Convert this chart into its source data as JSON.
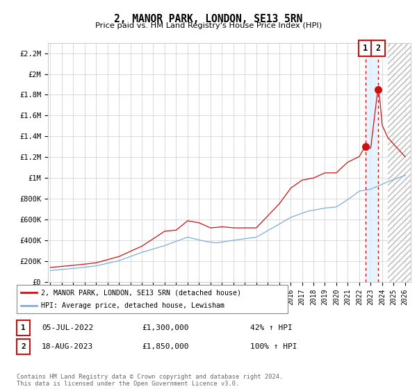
{
  "title": "2, MANOR PARK, LONDON, SE13 5RN",
  "subtitle": "Price paid vs. HM Land Registry's House Price Index (HPI)",
  "ylabel_ticks": [
    "£0",
    "£200K",
    "£400K",
    "£600K",
    "£800K",
    "£1M",
    "£1.2M",
    "£1.4M",
    "£1.6M",
    "£1.8M",
    "£2M",
    "£2.2M"
  ],
  "ytick_values": [
    0,
    200000,
    400000,
    600000,
    800000,
    1000000,
    1200000,
    1400000,
    1600000,
    1800000,
    2000000,
    2200000
  ],
  "ylim": [
    0,
    2300000
  ],
  "xlim_start": 1994.8,
  "xlim_end": 2026.5,
  "hatch_start": 2024.5,
  "xtick_years": [
    1995,
    1996,
    1997,
    1998,
    1999,
    2000,
    2001,
    2002,
    2003,
    2004,
    2005,
    2006,
    2007,
    2008,
    2009,
    2010,
    2011,
    2012,
    2013,
    2014,
    2015,
    2016,
    2017,
    2018,
    2019,
    2020,
    2021,
    2022,
    2023,
    2024,
    2025,
    2026
  ],
  "hpi_color": "#7aade0",
  "price_color": "#cc1111",
  "vline_color": "#cc1111",
  "highlight_color": "#ddeeff",
  "sale1_x": 2022.54,
  "sale1_y": 1300000,
  "sale2_x": 2023.63,
  "sale2_y": 1850000,
  "annotation1": {
    "label": "1",
    "date": "05-JUL-2022",
    "price": "£1,300,000",
    "pct": "42% ↑ HPI"
  },
  "annotation2": {
    "label": "2",
    "date": "18-AUG-2023",
    "price": "£1,850,000",
    "pct": "100% ↑ HPI"
  },
  "footer": "Contains HM Land Registry data © Crown copyright and database right 2024.\nThis data is licensed under the Open Government Licence v3.0.",
  "legend_line1": "2, MANOR PARK, LONDON, SE13 5RN (detached house)",
  "legend_line2": "HPI: Average price, detached house, Lewisham"
}
